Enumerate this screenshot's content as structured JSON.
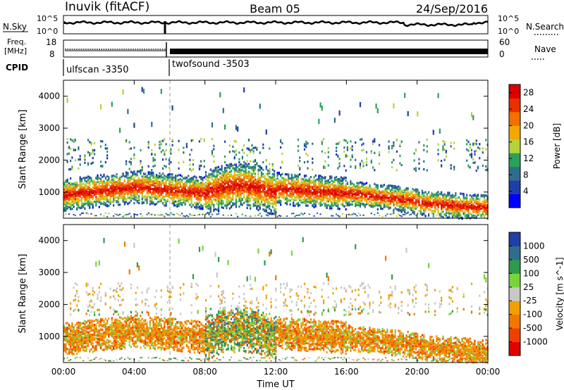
{
  "header": {
    "station": "Inuvik (fitACF)",
    "beam": "Beam 05",
    "date": "24/Sep/2016"
  },
  "panels": {
    "nsky_label": "N.Sky",
    "nsearch_label": "N.Search",
    "nsky_ticks": [
      "10^5",
      "10^0"
    ],
    "freq_label_1": "Freq.",
    "freq_label_2": "[MHz]",
    "freq_ticks": [
      "18",
      "8"
    ],
    "nave_ticks": [
      "60",
      "0"
    ],
    "nave_label": "Nave",
    "cpid_label": "CPID",
    "cpid_segments": [
      {
        "label": "ulfscan -3350",
        "start_h": 0.0,
        "end_h": 6.0
      },
      {
        "label": "twofsound -3503",
        "start_h": 6.0,
        "end_h": 24.0
      }
    ]
  },
  "colors": {
    "power": [
      "#0000ff",
      "#1f3fa8",
      "#2e6e8a",
      "#2aa05a",
      "#b4d23c",
      "#f2a800",
      "#f07000",
      "#e83000",
      "#dc0000"
    ],
    "velocity": [
      "#e00000",
      "#f04000",
      "#f07800",
      "#f0a000",
      "#c8c8c8",
      "#7ad23c",
      "#2e9a4a",
      "#2e6e8a",
      "#1f3fa8"
    ]
  },
  "chart_data": [
    {
      "type": "heatmap",
      "name": "power",
      "xlabel": "Time UT",
      "ylabel": "Slant Range [km]",
      "xlim": [
        0,
        24
      ],
      "ylim": [
        180,
        4500
      ],
      "x_ticks": [
        "00:00",
        "04:00",
        "08:00",
        "12:00",
        "16:00",
        "20:00",
        "00:00"
      ],
      "y_ticks": [
        1000,
        2000,
        3000,
        4000
      ],
      "colorbar": {
        "label": "Power [dB]",
        "ticks": [
          4,
          8,
          12,
          16,
          20,
          24,
          28
        ],
        "range": [
          0,
          30
        ]
      }
    },
    {
      "type": "heatmap",
      "name": "velocity",
      "xlabel": "Time UT",
      "ylabel": "Slant Range [km]",
      "xlim": [
        0,
        24
      ],
      "ylim": [
        180,
        4500
      ],
      "x_ticks": [
        "00:00",
        "04:00",
        "08:00",
        "12:00",
        "16:00",
        "20:00",
        "00:00"
      ],
      "y_ticks": [
        1000,
        2000,
        3000,
        4000
      ],
      "colorbar": {
        "label": "Velocity [m s^-1]",
        "ticks": [
          1000,
          500,
          100,
          25,
          -25,
          -100,
          -500,
          -1000
        ]
      }
    }
  ]
}
